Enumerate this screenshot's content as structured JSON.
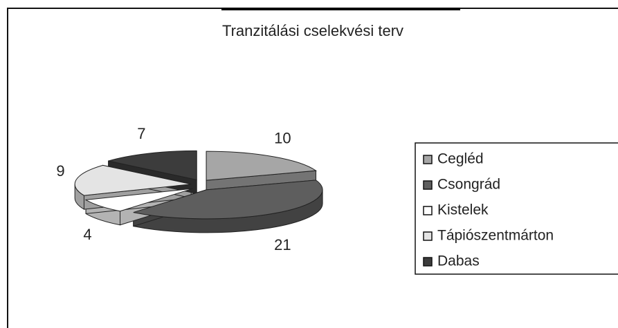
{
  "chart_data": {
    "type": "pie3d",
    "title": "Tranzitálási cselekvési terv",
    "categories": [
      "Cegléd",
      "Csongrád",
      "Kistelek",
      "Tápiószentmárton",
      "Dabas"
    ],
    "values": [
      10,
      21,
      4,
      9,
      7
    ],
    "colors": [
      "#a6a6a6",
      "#5e5e5e",
      "#ffffff",
      "#e4e4e4",
      "#3c3c3c"
    ],
    "legend": "right"
  }
}
